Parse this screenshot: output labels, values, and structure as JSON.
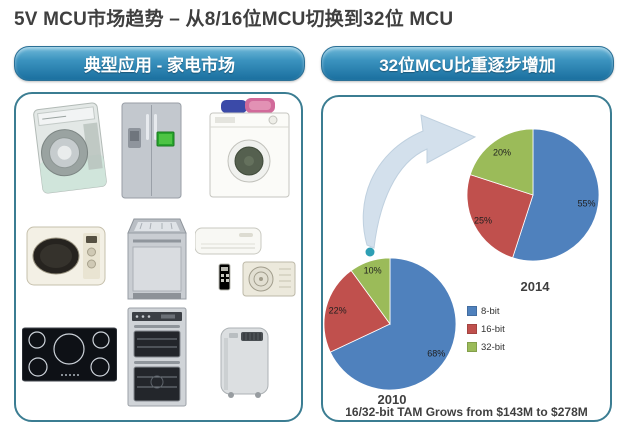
{
  "title": "5V MCU市场趋势 – 从8/16位MCU切换到32位 MCU",
  "left_panel": {
    "header": "典型应用 - 家电市场",
    "appliance_icons": [
      "washing-machine-cutaway-icon",
      "refrigerator-icon",
      "washing-machine-towels-icon",
      "microwave-oven-icon",
      "dishwasher-icon",
      "air-conditioner-set-icon",
      "induction-cooktop-icon",
      "double-wall-oven-icon",
      "portable-air-conditioner-icon"
    ]
  },
  "right_panel": {
    "header": "32位MCU比重逐步增加",
    "caption": "16/32-bit TAM Grows from $143M to $278M",
    "legend": {
      "items": [
        {
          "label": "8-bit",
          "color": "#4f81bd"
        },
        {
          "label": "16-bit",
          "color": "#c0504d"
        },
        {
          "label": "32-bit",
          "color": "#9bbb59"
        }
      ]
    }
  },
  "chart_data": [
    {
      "type": "pie",
      "title": "2010",
      "labels": [
        "8-bit",
        "16-bit",
        "32-bit"
      ],
      "values": [
        68,
        22,
        10
      ],
      "value_labels": [
        "68%",
        "22%",
        "10%"
      ],
      "colors": [
        "#4f81bd",
        "#c0504d",
        "#9bbb59"
      ],
      "legend_position": "right",
      "start_angle_deg": 0,
      "direction": "clockwise"
    },
    {
      "type": "pie",
      "title": "2014",
      "labels": [
        "8-bit",
        "16-bit",
        "32-bit"
      ],
      "values": [
        55,
        25,
        20
      ],
      "value_labels": [
        "55%",
        "25%",
        "20%"
      ],
      "colors": [
        "#4f81bd",
        "#c0504d",
        "#9bbb59"
      ],
      "legend_position": "none",
      "start_angle_deg": 0,
      "direction": "clockwise"
    }
  ],
  "theme": {
    "header_gradient_top": "#6fb9d9",
    "header_gradient_bottom": "#1a6f9f",
    "panel_border": "#3b7d92",
    "arrow_fill": "#d3e0ec",
    "arrow_dot": "#2e9fb4",
    "title_color": "#3f3f3f"
  }
}
